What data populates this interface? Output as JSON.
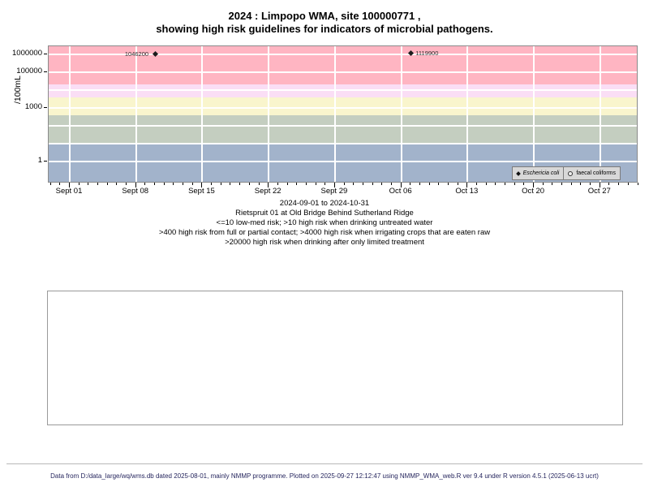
{
  "page": {
    "title_line1": "2024 : Limpopo WMA, site 100000771 ,",
    "title_line2": "showing high risk guidelines for indicators of microbial pathogens.",
    "footer": "Data from D:/data_large/wq/wms.db dated 2025-08-01, mainly NMMP programme. Plotted on 2025-09-27 12:12:47 using NMMP_WMA_web.R ver 9.4 under R version 4.5.1 (2025-06-13 ucrt)",
    "footer_color": "#26265e"
  },
  "chart_data": {
    "type": "scatter",
    "yscale": "log",
    "ylabel": "/100mL",
    "yticks": [
      {
        "value": 1000000,
        "label": "1000000"
      },
      {
        "value": 100000,
        "label": "100000"
      },
      {
        "value": 1000,
        "label": "1000"
      },
      {
        "value": 1,
        "label": "1"
      }
    ],
    "xticks": [
      "Sept 01",
      "Sept 08",
      "Sept 15",
      "Sept 22",
      "Sept 29",
      "Oct 06",
      "Oct 13",
      "Oct 20",
      "Oct 27"
    ],
    "x_period_label": "2024-09-01 to 2024-10-31",
    "site_label": "Rietspruit 01 at Old Bridge Behind Sutherland Ridge",
    "guideline_notes": [
      "<=10 low-med risk; >10 high risk when drinking untreated water",
      ">400 high risk from full or partial contact; >4000 high risk when irrigating crops that are eaten raw",
      ">20000 high risk when drinking after only limited treatment"
    ],
    "risk_bands": [
      {
        "min": 20000,
        "color": "#ffb5c2",
        "meaning": "high risk when drinking after only limited treatment"
      },
      {
        "min": 4000,
        "max": 20000,
        "color": "#fadef5",
        "meaning": "high risk when irrigating crops that are eaten raw"
      },
      {
        "min": 400,
        "max": 4000,
        "color": "#f9f5cd",
        "meaning": "high risk from full or partial contact"
      },
      {
        "min": 10,
        "max": 400,
        "color": "#c4cec0",
        "meaning": "high risk when drinking untreated water"
      },
      {
        "max": 10,
        "color": "#a2b3cb",
        "meaning": "low-med risk"
      }
    ],
    "series": [
      {
        "name": "Eschericia coli",
        "marker": "filled-diamond",
        "color": "#1c1c1c",
        "points": [
          {
            "date": "2024-09-10",
            "value": 1046200,
            "label": "1046200",
            "label_side": "left"
          },
          {
            "date": "2024-10-07",
            "value": 1119900,
            "label": "1119900",
            "label_side": "right"
          }
        ]
      },
      {
        "name": "faecal coliforms",
        "marker": "open-circle",
        "color": "#333333",
        "points": []
      }
    ],
    "legend": [
      {
        "label": "Eschericia coli",
        "marker": "filled-diamond"
      },
      {
        "label": "faecal coliforms",
        "marker": "open-circle"
      }
    ]
  }
}
